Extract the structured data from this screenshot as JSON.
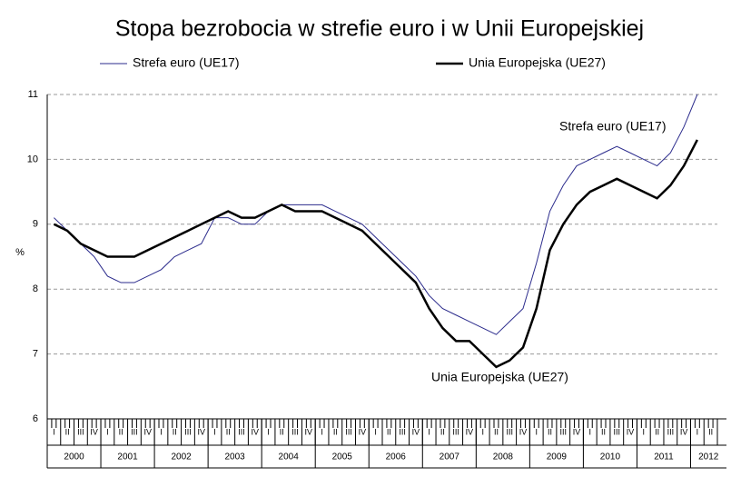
{
  "chart_data": {
    "type": "line",
    "title": "Stopa bezrobocia w strefie euro i w Unii Europejskiej",
    "y_label": "%",
    "annotations": [
      "Strefa euro (UE17)",
      "Unia Europejska (UE27)"
    ],
    "categories": [
      "I",
      "II",
      "III",
      "IV",
      "I",
      "II",
      "III",
      "IV",
      "I",
      "II",
      "III",
      "IV",
      "I",
      "II",
      "III",
      "IV",
      "I",
      "II",
      "III",
      "IV",
      "I",
      "II",
      "III",
      "IV",
      "I",
      "II",
      "III",
      "IV",
      "I",
      "II",
      "III",
      "IV",
      "I",
      "II",
      "III",
      "IV",
      "I",
      "II",
      "III",
      "IV",
      "I",
      "II",
      "III",
      "IV",
      "I",
      "II",
      "III",
      "IV",
      "I",
      "II"
    ],
    "years": [
      "2000",
      "2001",
      "2002",
      "2003",
      "2004",
      "2005",
      "2006",
      "2007",
      "2008",
      "2009",
      "2010",
      "2011",
      "2012"
    ],
    "series": [
      {
        "name": "Strefa euro (UE17)",
        "color": "#2b2b8c",
        "width": 1,
        "values": [
          9.1,
          8.9,
          8.7,
          8.5,
          8.2,
          8.1,
          8.1,
          8.2,
          8.3,
          8.5,
          8.6,
          8.7,
          9.1,
          9.1,
          9.0,
          9.0,
          9.2,
          9.3,
          9.3,
          9.3,
          9.3,
          9.2,
          9.1,
          9.0,
          8.8,
          8.6,
          8.4,
          8.2,
          7.9,
          7.7,
          7.6,
          7.5,
          7.4,
          7.3,
          7.5,
          7.7,
          8.4,
          9.2,
          9.6,
          9.9,
          10.0,
          10.1,
          10.2,
          10.1,
          10.0,
          9.9,
          10.1,
          10.5,
          11.0,
          null
        ]
      },
      {
        "name": "Unia Europejska (UE27)",
        "color": "#000000",
        "width": 2.5,
        "values": [
          9.0,
          8.9,
          8.7,
          8.6,
          8.5,
          8.5,
          8.5,
          8.6,
          8.7,
          8.8,
          8.9,
          9.0,
          9.1,
          9.2,
          9.1,
          9.1,
          9.2,
          9.3,
          9.2,
          9.2,
          9.2,
          9.1,
          9.0,
          8.9,
          8.7,
          8.5,
          8.3,
          8.1,
          7.7,
          7.4,
          7.2,
          7.2,
          7.0,
          6.8,
          6.9,
          7.1,
          7.7,
          8.6,
          9.0,
          9.3,
          9.5,
          9.6,
          9.7,
          9.6,
          9.5,
          9.4,
          9.6,
          9.9,
          10.3,
          null
        ]
      }
    ],
    "ylim": [
      6,
      11
    ],
    "yticks": [
      6,
      7,
      8,
      9,
      10,
      11
    ],
    "grid": true
  }
}
